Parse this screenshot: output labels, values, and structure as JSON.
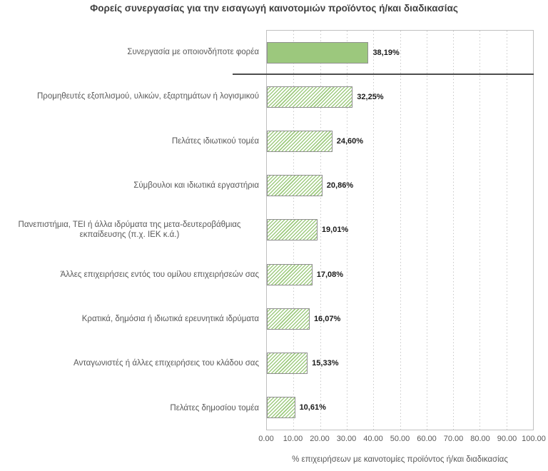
{
  "chart_data": {
    "type": "bar",
    "orientation": "horizontal",
    "title": "Φορείς συνεργασίας για την εισαγωγή καινοτομιών προϊόντος ή/και διαδικασίας",
    "xlabel": "% επιχειρήσεων με καινοτομίες προϊόντος ή/και διαδικασίας",
    "xlim": [
      0,
      100
    ],
    "x_ticks": [
      "0.00",
      "10.00",
      "20.00",
      "30.00",
      "40.00",
      "50.00",
      "60.00",
      "70.00",
      "80.00",
      "90.00",
      "100.00"
    ],
    "grid": "vertical-dotted",
    "legend": "none",
    "categories": [
      "Συνεργασία με οποιονδήποτε φορέα",
      "Προμηθευτές εξοπλισμού, υλικών, εξαρτημάτων ή λογισμικού",
      "Πελάτες ιδιωτικού τομέα",
      "Σύμβουλοι και ιδιωτικά εργαστήρια",
      "Πανεπιστήμια, ΤΕΙ ή άλλα ιδρύματα της  μετα-δευτεροβάθμιας εκπαίδευσης (π.χ. ΙΕΚ κ.ά.)",
      "Άλλες επιχειρήσεις εντός του ομίλου επιχειρήσεών σας",
      "Κρατικά, δημόσια ή ιδιωτικά ερευνητικά ιδρύματα",
      "Ανταγωνιστές ή άλλες επιχειρήσεις του κλάδου σας",
      "Πελάτες δημοσίου τομέα"
    ],
    "values": [
      38.19,
      32.25,
      24.6,
      20.86,
      19.01,
      17.08,
      16.07,
      15.33,
      10.61
    ],
    "value_labels": [
      "38,19%",
      "32,25%",
      "24,60%",
      "20,86%",
      "19,01%",
      "17,08%",
      "16,07%",
      "15,33%",
      "10,61%"
    ],
    "bar_styles": [
      "solid",
      "hatched",
      "hatched",
      "hatched",
      "hatched",
      "hatched",
      "hatched",
      "hatched",
      "hatched"
    ],
    "annotations": [
      "separator line below first bar"
    ],
    "colors": {
      "solid_fill": "#9cc87d",
      "hatch_stripe": "#9fcb80",
      "bar_border": "#8f8f8f",
      "plot_border": "#c0c0c0",
      "gridline": "#c8c8c8",
      "separator": "#4d4d4d",
      "title_text": "#404040",
      "category_text": "#595959",
      "value_text": "#1a1a1a"
    }
  }
}
